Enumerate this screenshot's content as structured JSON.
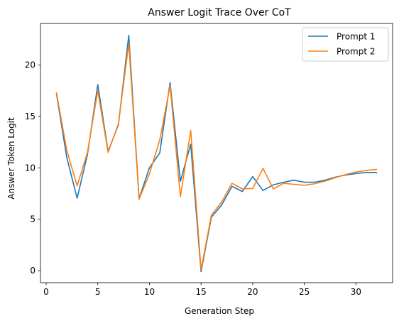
{
  "chart_data": {
    "type": "line",
    "title": "Answer Logit Trace Over CoT",
    "xlabel": "Generation Step",
    "ylabel": "Answer Token Logit",
    "xlim": [
      -0.55,
      33.55
    ],
    "ylim": [
      -1.17,
      24.05
    ],
    "xticks": [
      0,
      5,
      10,
      15,
      20,
      25,
      30
    ],
    "yticks": [
      0,
      5,
      10,
      15,
      20
    ],
    "grid": false,
    "legend_position": "top-right",
    "x": [
      1,
      2,
      3,
      4,
      5,
      6,
      7,
      8,
      9,
      10,
      11,
      12,
      13,
      14,
      15,
      16,
      17,
      18,
      19,
      20,
      21,
      22,
      23,
      24,
      25,
      26,
      27,
      28,
      29,
      30,
      31,
      32
    ],
    "series": [
      {
        "name": "Prompt 1",
        "color": "#1f77b4",
        "values": [
          17.2,
          11.0,
          7.05,
          11.3,
          18.1,
          11.6,
          14.2,
          22.9,
          7.0,
          10.0,
          11.45,
          18.3,
          8.7,
          12.3,
          -0.1,
          5.2,
          6.4,
          8.2,
          7.7,
          9.15,
          7.8,
          8.35,
          8.6,
          8.8,
          8.6,
          8.6,
          8.8,
          9.1,
          9.3,
          9.45,
          9.55,
          9.55
        ]
      },
      {
        "name": "Prompt 2",
        "color": "#ff7f0e",
        "values": [
          17.3,
          11.7,
          8.25,
          11.5,
          17.5,
          11.5,
          14.3,
          22.1,
          6.95,
          9.4,
          12.7,
          18.0,
          7.2,
          13.65,
          0.1,
          5.4,
          6.7,
          8.5,
          7.95,
          8.0,
          9.95,
          7.95,
          8.5,
          8.4,
          8.3,
          8.45,
          8.7,
          9.05,
          9.35,
          9.6,
          9.75,
          9.85
        ]
      }
    ]
  }
}
